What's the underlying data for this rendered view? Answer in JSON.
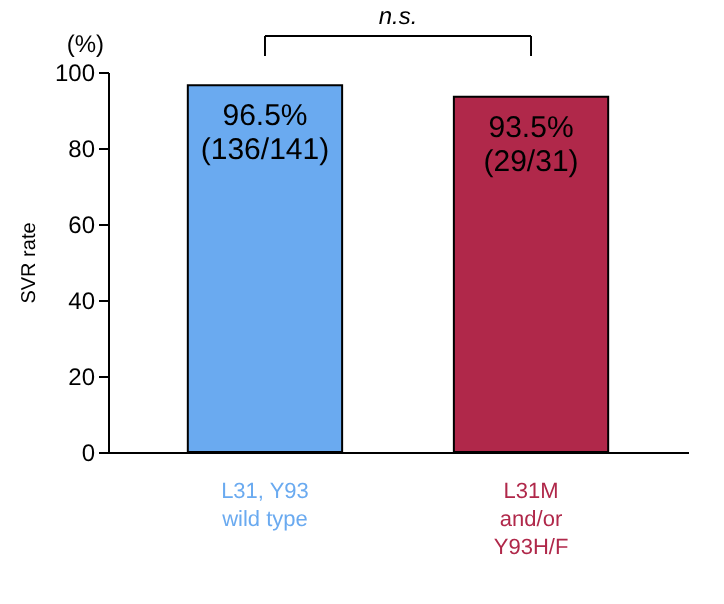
{
  "chart_data": {
    "type": "bar",
    "ylabel": "SVR rate",
    "categories": [
      "L31, Y93\nwild type",
      "L31M\nand/or\nY93H/F"
    ],
    "values": [
      96.5,
      93.5
    ],
    "colors": [
      "#6aaaf0",
      "#b0284a"
    ],
    "value_labels": [
      "96.5%\n(136/141)",
      "93.5%\n(29/31)"
    ],
    "ylim": [
      0,
      100
    ],
    "yticks": [
      0,
      20,
      40,
      60,
      80,
      100
    ],
    "grid": false,
    "annotations": [
      "n.s.",
      "(%)"
    ]
  }
}
